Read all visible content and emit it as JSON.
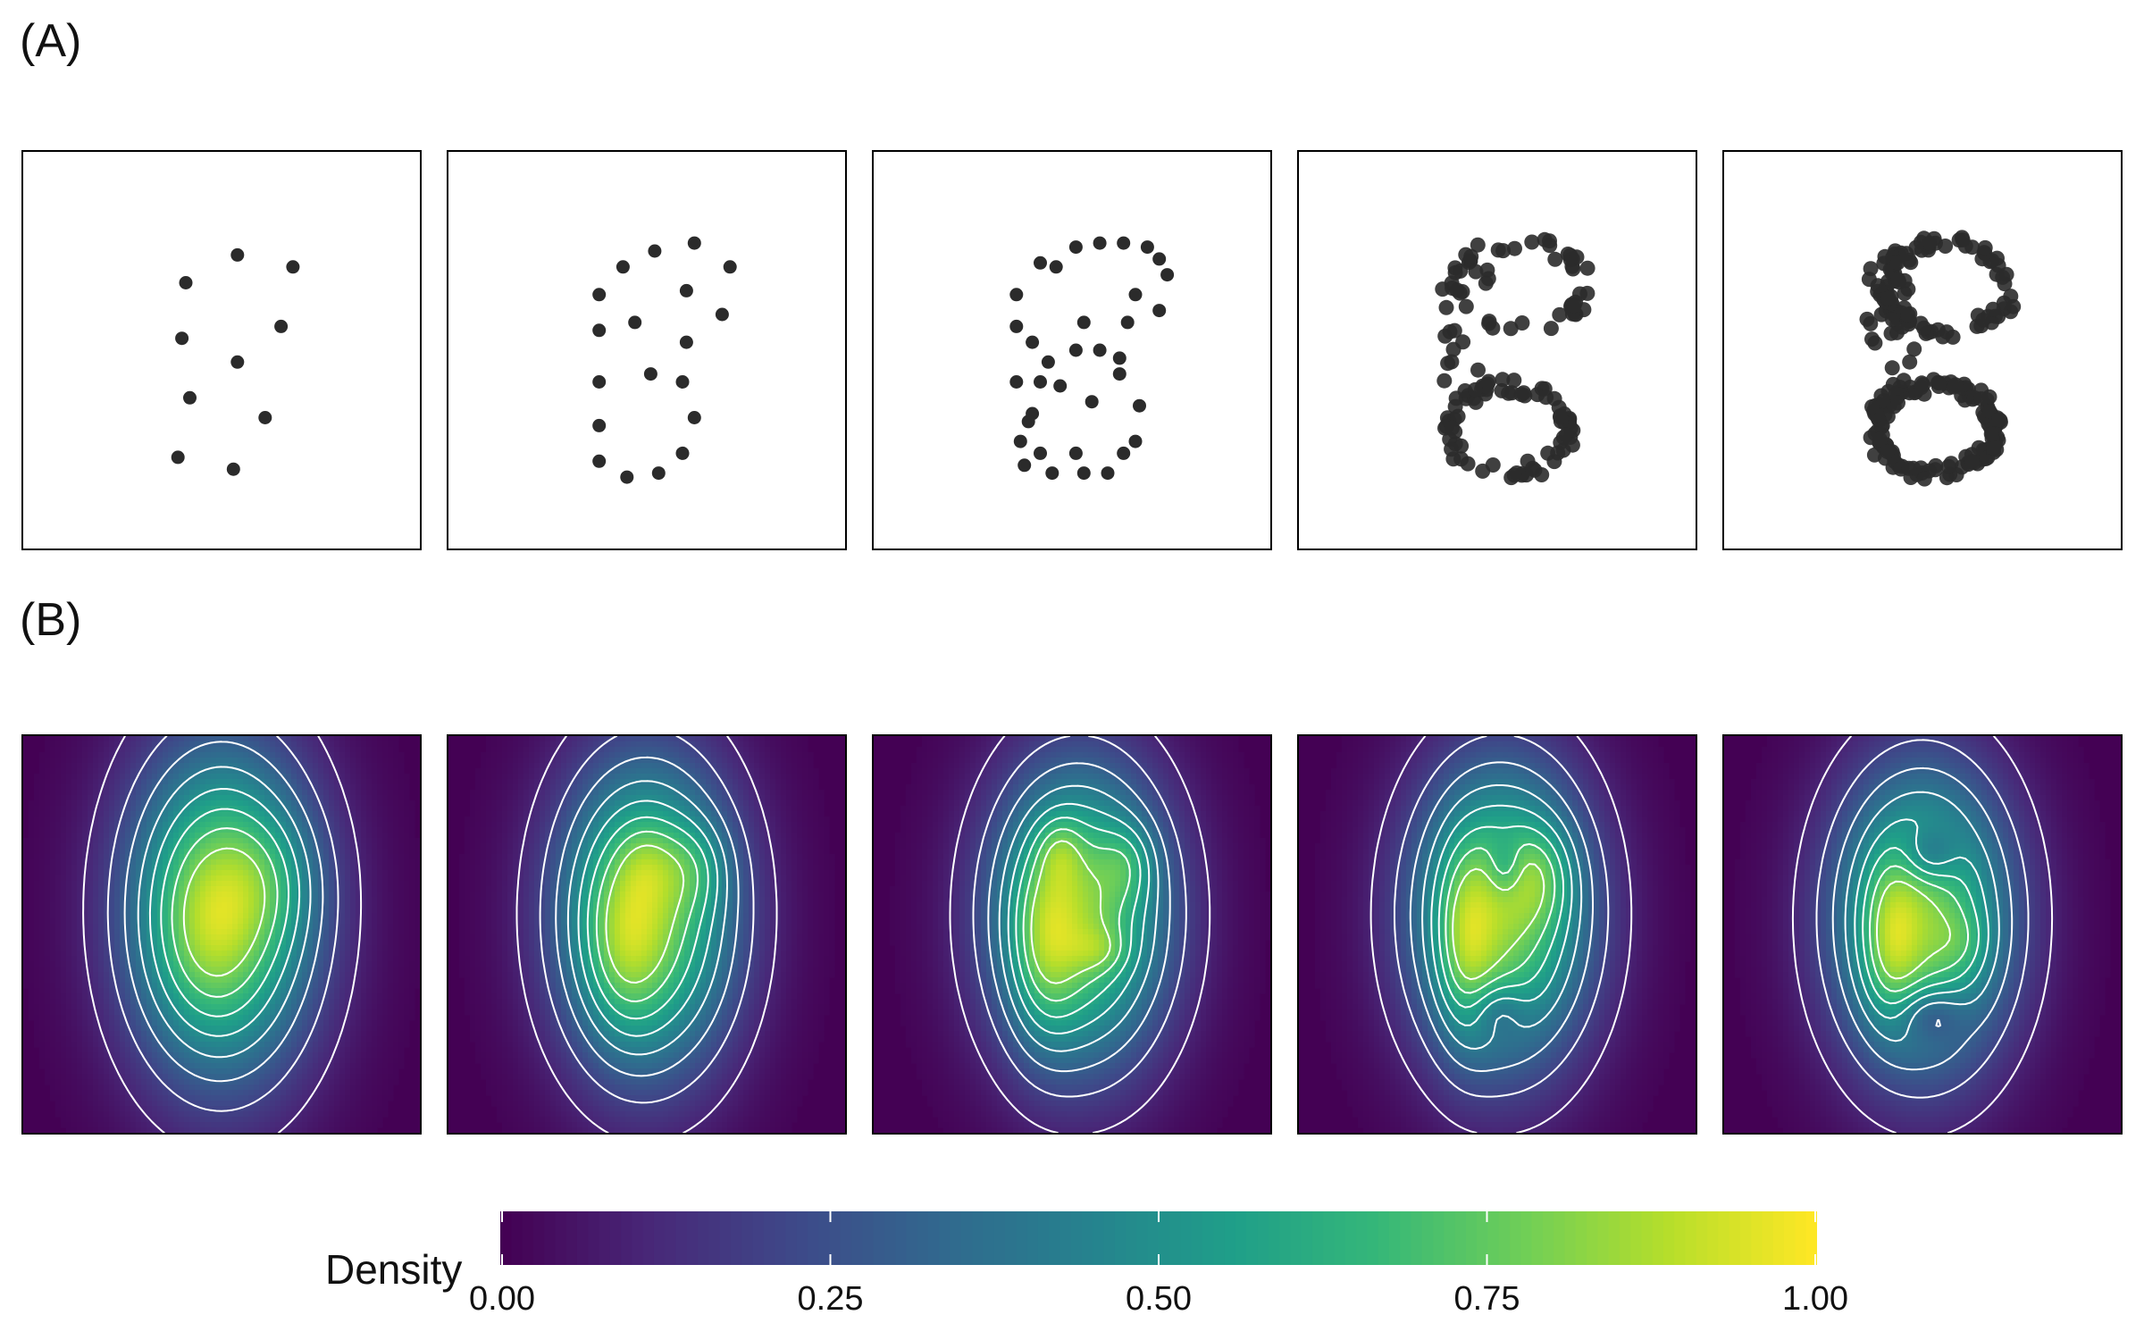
{
  "figure": {
    "panel_a_label": "(A)",
    "panel_b_label": "(B)"
  },
  "colors": {
    "point": "#2b2b2b",
    "contour": "#ffffff",
    "background_density": "#440154",
    "viridis": [
      "#440154",
      "#482878",
      "#3e4989",
      "#31688e",
      "#26828e",
      "#1f9e89",
      "#35b779",
      "#6ece58",
      "#b5de2b",
      "#fde725"
    ]
  },
  "chart_data": [
    {
      "type": "scatter",
      "name": "panel-a-1",
      "xlim": [
        0,
        1
      ],
      "ylim": [
        0,
        1
      ],
      "x": [
        0.54,
        0.68,
        0.41,
        0.65,
        0.4,
        0.54,
        0.42,
        0.61,
        0.39,
        0.53
      ],
      "y": [
        0.74,
        0.71,
        0.67,
        0.56,
        0.53,
        0.47,
        0.38,
        0.33,
        0.23,
        0.2
      ]
    },
    {
      "type": "scatter",
      "name": "panel-a-2",
      "xlim": [
        0,
        1
      ],
      "ylim": [
        0,
        1
      ],
      "x": [
        0.62,
        0.52,
        0.71,
        0.44,
        0.38,
        0.6,
        0.69,
        0.47,
        0.38,
        0.6,
        0.38,
        0.51,
        0.59,
        0.38,
        0.62,
        0.38,
        0.59,
        0.53,
        0.45
      ],
      "y": [
        0.77,
        0.75,
        0.71,
        0.71,
        0.64,
        0.65,
        0.59,
        0.57,
        0.55,
        0.52,
        0.42,
        0.44,
        0.42,
        0.31,
        0.33,
        0.22,
        0.24,
        0.19,
        0.18
      ]
    },
    {
      "type": "scatter",
      "name": "panel-a-3",
      "xlim": [
        0,
        1
      ],
      "ylim": [
        0,
        1
      ],
      "x": [
        0.57,
        0.63,
        0.69,
        0.51,
        0.72,
        0.42,
        0.46,
        0.74,
        0.36,
        0.66,
        0.72,
        0.36,
        0.4,
        0.53,
        0.64,
        0.44,
        0.57,
        0.51,
        0.42,
        0.62,
        0.36,
        0.47,
        0.62,
        0.55,
        0.4,
        0.39,
        0.67,
        0.37,
        0.66,
        0.42,
        0.51,
        0.63,
        0.38,
        0.45,
        0.53,
        0.59
      ],
      "y": [
        0.77,
        0.77,
        0.76,
        0.76,
        0.73,
        0.72,
        0.71,
        0.69,
        0.64,
        0.64,
        0.6,
        0.56,
        0.52,
        0.57,
        0.57,
        0.47,
        0.5,
        0.5,
        0.42,
        0.48,
        0.42,
        0.41,
        0.44,
        0.37,
        0.34,
        0.32,
        0.36,
        0.27,
        0.27,
        0.24,
        0.24,
        0.24,
        0.21,
        0.19,
        0.19,
        0.19
      ],
      "jitter_count": 0
    },
    {
      "type": "scatter",
      "name": "panel-a-4",
      "xlim": [
        0,
        1
      ],
      "ylim": [
        0,
        1
      ],
      "generated": "ring-and-blob",
      "count": 140
    },
    {
      "type": "scatter",
      "name": "panel-a-5",
      "xlim": [
        0,
        1
      ],
      "ylim": [
        0,
        1
      ],
      "generated": "ring-and-blob-dense",
      "count": 260
    },
    {
      "type": "heatmap",
      "name": "panel-b-1",
      "contours": [
        0.1,
        0.2,
        0.3,
        0.4,
        0.5,
        0.6,
        0.7,
        0.8
      ],
      "components": [
        {
          "mx": 0.5,
          "my": 0.56,
          "sx": 0.17,
          "sy": 0.3,
          "w": 1.0
        },
        {
          "mx": 0.46,
          "my": 0.5,
          "sx": 0.09,
          "sy": 0.16,
          "w": 0.15
        },
        {
          "mx": 0.62,
          "my": 0.64,
          "sx": 0.09,
          "sy": 0.12,
          "w": 0.15
        }
      ]
    },
    {
      "type": "heatmap",
      "name": "panel-b-2",
      "contours": [
        0.1,
        0.2,
        0.3,
        0.4,
        0.5,
        0.6,
        0.7,
        0.8
      ],
      "components": [
        {
          "mx": 0.5,
          "my": 0.55,
          "sx": 0.16,
          "sy": 0.28,
          "w": 1.0
        },
        {
          "mx": 0.44,
          "my": 0.47,
          "sx": 0.07,
          "sy": 0.16,
          "w": 0.22
        },
        {
          "mx": 0.62,
          "my": 0.67,
          "sx": 0.06,
          "sy": 0.08,
          "w": 0.18
        },
        {
          "mx": 0.5,
          "my": 0.68,
          "sx": 0.05,
          "sy": 0.07,
          "w": 0.12
        }
      ]
    },
    {
      "type": "heatmap",
      "name": "panel-b-3",
      "contours": [
        0.1,
        0.2,
        0.3,
        0.4,
        0.5,
        0.6,
        0.7,
        0.8
      ],
      "components": [
        {
          "mx": 0.52,
          "my": 0.55,
          "sx": 0.16,
          "sy": 0.27,
          "w": 1.0
        },
        {
          "mx": 0.43,
          "my": 0.47,
          "sx": 0.06,
          "sy": 0.17,
          "w": 0.3
        },
        {
          "mx": 0.57,
          "my": 0.46,
          "sx": 0.05,
          "sy": 0.04,
          "w": 0.15
        },
        {
          "mx": 0.64,
          "my": 0.68,
          "sx": 0.05,
          "sy": 0.07,
          "w": 0.2
        },
        {
          "mx": 0.47,
          "my": 0.71,
          "sx": 0.04,
          "sy": 0.06,
          "w": 0.18
        }
      ]
    },
    {
      "type": "heatmap",
      "name": "panel-b-4",
      "contours": [
        0.1,
        0.2,
        0.3,
        0.4,
        0.5,
        0.6,
        0.7,
        0.8
      ],
      "components": [
        {
          "mx": 0.51,
          "my": 0.55,
          "sx": 0.16,
          "sy": 0.27,
          "w": 1.0
        },
        {
          "mx": 0.42,
          "my": 0.47,
          "sx": 0.05,
          "sy": 0.17,
          "w": 0.3
        },
        {
          "mx": 0.61,
          "my": 0.65,
          "sx": 0.06,
          "sy": 0.09,
          "w": 0.22
        },
        {
          "mx": 0.5,
          "my": 0.31,
          "sx": 0.05,
          "sy": 0.05,
          "w": -0.2
        },
        {
          "mx": 0.52,
          "my": 0.67,
          "sx": 0.03,
          "sy": 0.05,
          "w": -0.18
        }
      ]
    },
    {
      "type": "heatmap",
      "name": "panel-b-5",
      "contours": [
        0.1,
        0.2,
        0.3,
        0.4,
        0.5,
        0.6,
        0.7,
        0.8
      ],
      "components": [
        {
          "mx": 0.5,
          "my": 0.54,
          "sx": 0.16,
          "sy": 0.27,
          "w": 1.0
        },
        {
          "mx": 0.42,
          "my": 0.48,
          "sx": 0.05,
          "sy": 0.14,
          "w": 0.3
        },
        {
          "mx": 0.52,
          "my": 0.3,
          "sx": 0.06,
          "sy": 0.05,
          "w": -0.28
        },
        {
          "mx": 0.52,
          "my": 0.7,
          "sx": 0.05,
          "sy": 0.05,
          "w": -0.28
        },
        {
          "mx": 0.6,
          "my": 0.48,
          "sx": 0.05,
          "sy": 0.06,
          "w": 0.12
        }
      ]
    },
    {
      "type": "colorbar",
      "name": "density-colorbar",
      "title": "Density",
      "range": [
        0,
        1
      ],
      "ticks": [
        0.0,
        0.25,
        0.5,
        0.75,
        1.0
      ],
      "tick_labels": [
        "0.00",
        "0.25",
        "0.50",
        "0.75",
        "1.00"
      ]
    }
  ]
}
